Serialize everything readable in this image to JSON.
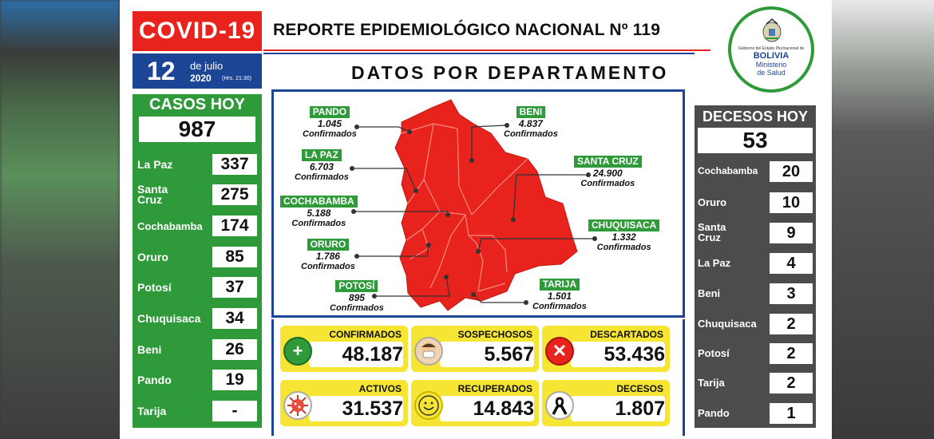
{
  "header": {
    "badge": "COVID-19",
    "day": "12",
    "month": "de julio",
    "year": "2020",
    "hour": "(Hrs. 21:30)",
    "title": "REPORTE EPIDEMIOLÓGICO NACIONAL Nº 119",
    "subtitle": "DATOS POR DEPARTAMENTO"
  },
  "logo": {
    "small_text": "Gobierno del Estado Plurinacional de",
    "country": "BOLIVIA",
    "line1": "Ministerio",
    "line2": "de Salud"
  },
  "cases_today": {
    "heading": "CASOS HOY",
    "total": "987",
    "rows": [
      {
        "name": "La Paz",
        "value": "337"
      },
      {
        "name": "Santa Cruz",
        "value": "275"
      },
      {
        "name": "Cochabamba",
        "value": "174"
      },
      {
        "name": "Oruro",
        "value": "85"
      },
      {
        "name": "Potosí",
        "value": "37"
      },
      {
        "name": "Chuquisaca",
        "value": "34"
      },
      {
        "name": "Beni",
        "value": "26"
      },
      {
        "name": "Pando",
        "value": "19"
      },
      {
        "name": "Tarija",
        "value": "-"
      }
    ]
  },
  "deaths_today": {
    "heading": "DECESOS HOY",
    "total": "53",
    "rows": [
      {
        "name": "Cochabamba",
        "value": "20"
      },
      {
        "name": "Oruro",
        "value": "10"
      },
      {
        "name": "Santa Cruz",
        "value": "9"
      },
      {
        "name": "La Paz",
        "value": "4"
      },
      {
        "name": "Beni",
        "value": "3"
      },
      {
        "name": "Chuquisaca",
        "value": "2"
      },
      {
        "name": "Potosí",
        "value": "2"
      },
      {
        "name": "Tarija",
        "value": "2"
      },
      {
        "name": "Pando",
        "value": "1"
      }
    ]
  },
  "map": {
    "confirmed_word": "Confirmados",
    "labels": [
      {
        "name": "PANDO",
        "value": "1.045"
      },
      {
        "name": "LA PAZ",
        "value": "6.703"
      },
      {
        "name": "COCHABAMBA",
        "value": "5.188"
      },
      {
        "name": "ORURO",
        "value": "1.786"
      },
      {
        "name": "POTOSÍ",
        "value": "895"
      },
      {
        "name": "BENI",
        "value": "4.837"
      },
      {
        "name": "SANTA CRUZ",
        "value": "24.900"
      },
      {
        "name": "CHUQUISACA",
        "value": "1.332"
      },
      {
        "name": "TARIJA",
        "value": "1.501"
      }
    ]
  },
  "stats": [
    {
      "label": "CONFIRMADOS",
      "value": "48.187",
      "icon": "plus-icon"
    },
    {
      "label": "SOSPECHOSOS",
      "value": "5.567",
      "icon": "masked-face-icon"
    },
    {
      "label": "DESCARTADOS",
      "value": "53.436",
      "icon": "x-icon"
    },
    {
      "label": "ACTIVOS",
      "value": "31.537",
      "icon": "virus-icon"
    },
    {
      "label": "RECUPERADOS",
      "value": "14.843",
      "icon": "smile-icon"
    },
    {
      "label": "DECESOS",
      "value": "1.807",
      "icon": "mourning-ribbon-icon"
    }
  ],
  "colors": {
    "red": "#e8221c",
    "blue": "#1d4595",
    "green": "#2e9a3a",
    "yellow": "#f7e533",
    "gray": "#4c4c4c"
  }
}
